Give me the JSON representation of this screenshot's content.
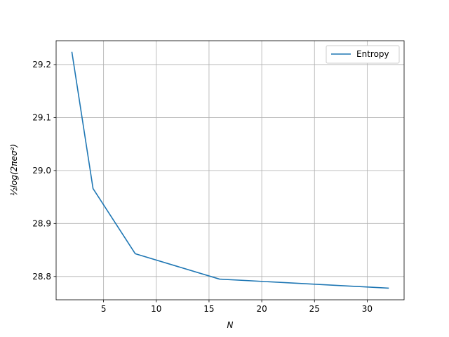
{
  "chart_data": {
    "type": "line",
    "title": "",
    "xlabel": "N",
    "ylabel": "½log(2πeσ²)",
    "xlim": [
      0.5,
      33.5
    ],
    "ylim": [
      28.756,
      29.245
    ],
    "xticks": [
      5,
      10,
      15,
      20,
      25,
      30
    ],
    "yticks": [
      28.8,
      28.9,
      29.0,
      29.1,
      29.2
    ],
    "xtick_labels": [
      "5",
      "10",
      "15",
      "20",
      "25",
      "30"
    ],
    "ytick_labels": [
      "28.8",
      "28.9",
      "29.0",
      "29.1",
      "29.2"
    ],
    "grid": true,
    "legend": {
      "position": "top-right"
    },
    "series": [
      {
        "name": "Entropy",
        "color": "#1f77b4",
        "x": [
          2,
          4,
          8,
          16,
          32
        ],
        "y": [
          29.223,
          28.966,
          28.843,
          28.795,
          28.778
        ]
      }
    ]
  }
}
